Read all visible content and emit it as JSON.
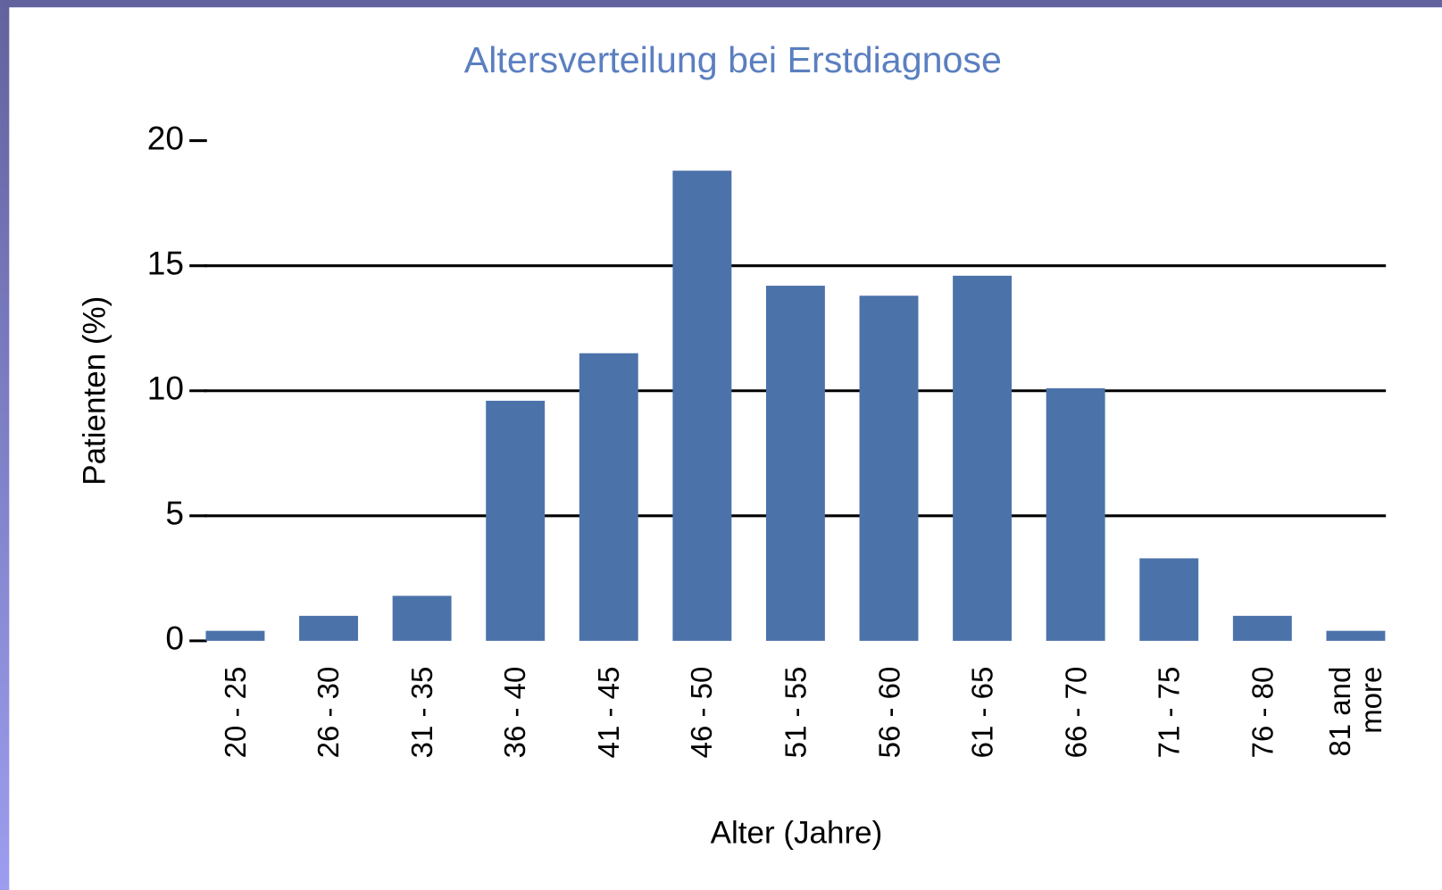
{
  "chart_data": {
    "type": "bar",
    "title": "Altersverteilung bei Erstdiagnose",
    "x_label": "Alter (Jahre)",
    "y_label": "Patienten (%)",
    "categories": [
      "20 - 25",
      "26 - 30",
      "31 - 35",
      "36 - 40",
      "41 - 45",
      "46 - 50",
      "51 - 55",
      "56 - 60",
      "61 - 65",
      "66 - 70",
      "71 - 75",
      "76 - 80",
      "81 and more"
    ],
    "values": [
      0.4,
      1.0,
      1.8,
      9.6,
      11.5,
      18.8,
      14.2,
      13.8,
      14.6,
      10.1,
      3.3,
      1.0,
      0.4
    ],
    "color": "#4c72aa",
    "ylim": [
      0,
      20
    ],
    "yticks": [
      0,
      5,
      10,
      15,
      20
    ],
    "grid": true
  }
}
